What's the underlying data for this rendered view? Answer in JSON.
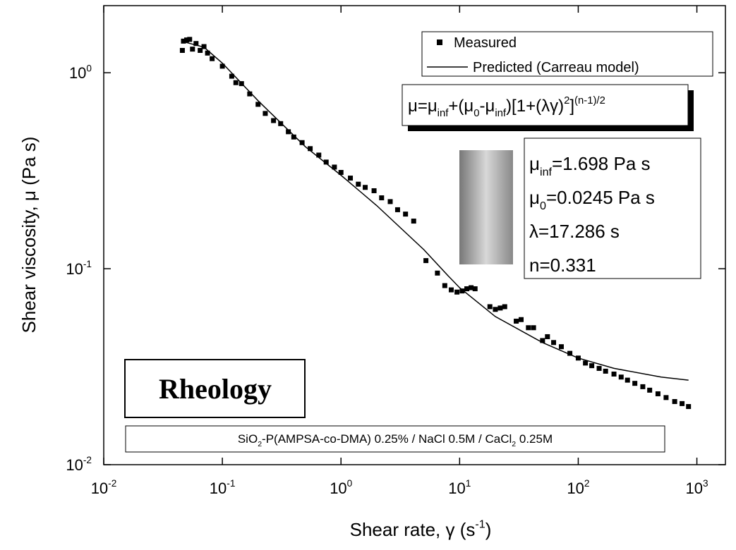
{
  "chart_data": {
    "type": "scatter",
    "x_label": [
      {
        "text": "Shear rate, γ (s"
      },
      {
        "sup": "-1"
      },
      {
        "text": ")"
      }
    ],
    "y_label": [
      {
        "text": "Shear viscosity, μ (Pa s)"
      }
    ],
    "log_x": true,
    "log_y": true,
    "xlim": [
      0.01,
      1740
    ],
    "ylim": [
      0.01,
      2.2
    ],
    "xticks": [
      {
        "value": 0.01,
        "label": "10",
        "exponent": "-2"
      },
      {
        "value": 0.1,
        "label": "10",
        "exponent": "-1"
      },
      {
        "value": 1,
        "label": "10",
        "exponent": "0"
      },
      {
        "value": 10,
        "label": "10",
        "exponent": "1"
      },
      {
        "value": 100,
        "label": "10",
        "exponent": "2"
      },
      {
        "value": 1000,
        "label": "10",
        "exponent": "3"
      }
    ],
    "yticks": [
      {
        "value": 0.01,
        "label": "10",
        "exponent": "-2"
      },
      {
        "value": 0.1,
        "label": "10",
        "exponent": "-1"
      },
      {
        "value": 1,
        "label": "10",
        "exponent": "0"
      }
    ],
    "legend": "top-right",
    "series": [
      {
        "name": "Measured",
        "type": "scatter",
        "color": "#000000",
        "x": [
          0.046,
          0.047,
          0.05,
          0.053,
          0.056,
          0.06,
          0.065,
          0.07,
          0.075,
          0.082,
          0.1,
          0.12,
          0.13,
          0.145,
          0.17,
          0.2,
          0.23,
          0.27,
          0.31,
          0.36,
          0.4,
          0.47,
          0.55,
          0.65,
          0.75,
          0.88,
          1.0,
          1.2,
          1.4,
          1.6,
          1.9,
          2.2,
          2.6,
          3.0,
          3.5,
          4.1,
          5.2,
          6.5,
          7.5,
          8.5,
          9.5,
          10.5,
          11.5,
          12.5,
          13.5,
          18,
          20,
          22,
          24,
          30,
          33,
          38,
          42,
          50,
          55,
          62,
          72,
          85,
          100,
          115,
          130,
          150,
          170,
          200,
          230,
          260,
          300,
          350,
          400,
          470,
          550,
          650,
          750,
          850
        ],
        "values": [
          1.3,
          1.45,
          1.47,
          1.48,
          1.32,
          1.41,
          1.3,
          1.36,
          1.26,
          1.18,
          1.08,
          0.96,
          0.89,
          0.88,
          0.78,
          0.69,
          0.62,
          0.57,
          0.55,
          0.5,
          0.47,
          0.44,
          0.41,
          0.38,
          0.35,
          0.33,
          0.31,
          0.29,
          0.27,
          0.26,
          0.25,
          0.23,
          0.22,
          0.2,
          0.19,
          0.175,
          0.11,
          0.095,
          0.082,
          0.078,
          0.076,
          0.077,
          0.079,
          0.08,
          0.079,
          0.064,
          0.062,
          0.063,
          0.064,
          0.054,
          0.055,
          0.05,
          0.05,
          0.043,
          0.045,
          0.042,
          0.04,
          0.037,
          0.035,
          0.033,
          0.032,
          0.031,
          0.03,
          0.029,
          0.028,
          0.027,
          0.026,
          0.025,
          0.024,
          0.023,
          0.022,
          0.021,
          0.0205,
          0.0198
        ]
      },
      {
        "name": "Predicted (Carreau model)",
        "type": "line",
        "color": "#000000",
        "x": [
          0.045,
          0.07,
          0.1,
          0.2,
          0.5,
          1,
          2,
          5,
          8,
          10,
          20,
          50,
          100,
          200,
          500,
          850
        ],
        "values": [
          1.45,
          1.35,
          1.12,
          0.72,
          0.42,
          0.3,
          0.21,
          0.125,
          0.092,
          0.08,
          0.057,
          0.042,
          0.035,
          0.031,
          0.028,
          0.027
        ]
      }
    ],
    "equation": [
      {
        "text": "μ=μ"
      },
      {
        "sub": "inf"
      },
      {
        "text": "+(μ"
      },
      {
        "sub": "0"
      },
      {
        "text": "-μ"
      },
      {
        "sub": "inf"
      },
      {
        "text": ")[1+(λγ)"
      },
      {
        "sup": "2"
      },
      {
        "text": "]"
      },
      {
        "sup": "(n-1)/2"
      }
    ],
    "parameters": [
      [
        {
          "text": "μ"
        },
        {
          "sub": "inf"
        },
        {
          "text": "=1.698 Pa s"
        }
      ],
      [
        {
          "text": "μ"
        },
        {
          "sub": "0"
        },
        {
          "text": "=0.0245 Pa s"
        }
      ],
      [
        {
          "text": "λ=17.286 s"
        }
      ],
      [
        {
          "text": "n=0.331"
        }
      ]
    ],
    "label": "Rheology",
    "caption": [
      {
        "text": "SiO"
      },
      {
        "sub": "2"
      },
      {
        "text": "-P(AMPSA-co-DMA) 0.25% / NaCl 0.5M / CaCl"
      },
      {
        "sub": "2"
      },
      {
        "text": " 0.25M"
      }
    ]
  }
}
